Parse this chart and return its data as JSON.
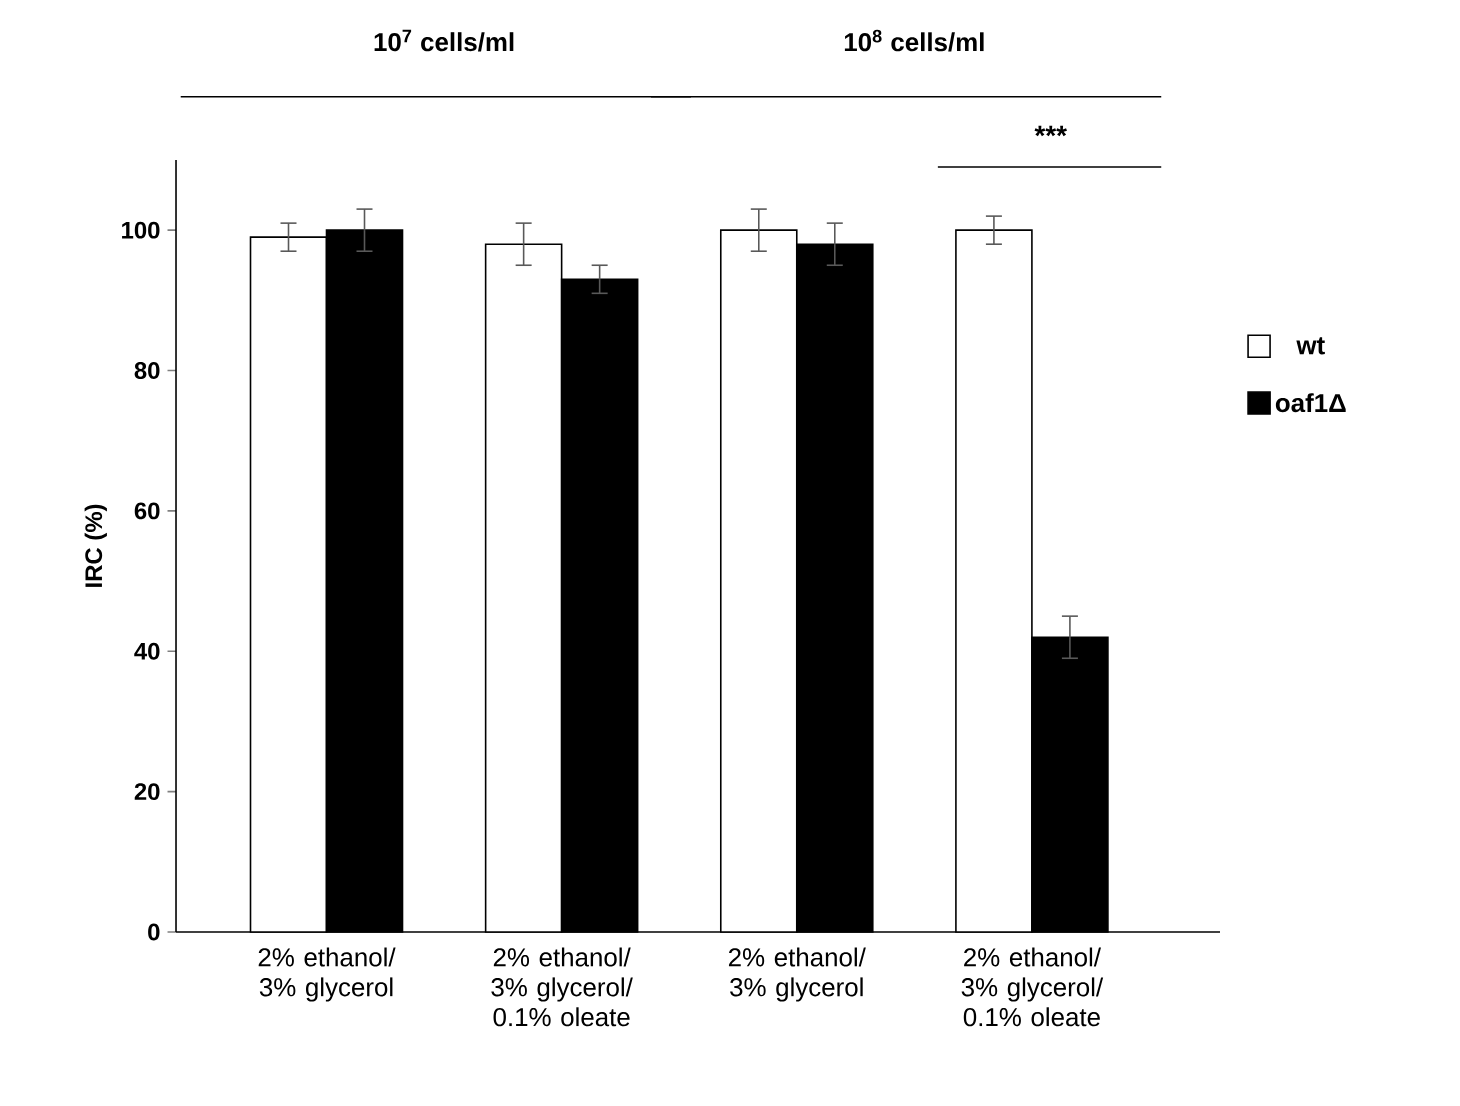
{
  "chart_data": {
    "type": "bar",
    "ylabel": "IRC (%)",
    "categories": [
      "2% ethanol/ 3% glycerol",
      "2% ethanol/ 3% glycerol/ 0.1% oleate",
      "2% ethanol/ 3% glycerol",
      "2% ethanol/ 3% glycerol/ 0.1% oleate"
    ],
    "series": [
      {
        "name": "wt",
        "color": "#ffffff",
        "values": [
          99,
          98,
          100,
          100
        ],
        "errors": [
          2,
          3,
          3,
          2
        ]
      },
      {
        "name": "oaf1Δ",
        "color": "#000000",
        "values": [
          100,
          93,
          98,
          42
        ],
        "errors": [
          3,
          2,
          3,
          3
        ]
      }
    ],
    "ylim": [
      0,
      110
    ],
    "yticks": [
      0,
      20,
      40,
      60,
      80,
      100
    ],
    "grid": false,
    "legend": "right",
    "annotations": [
      "10$^{7}$ cells/ml",
      "10$^{8}$ cells/ml",
      "***"
    ]
  }
}
